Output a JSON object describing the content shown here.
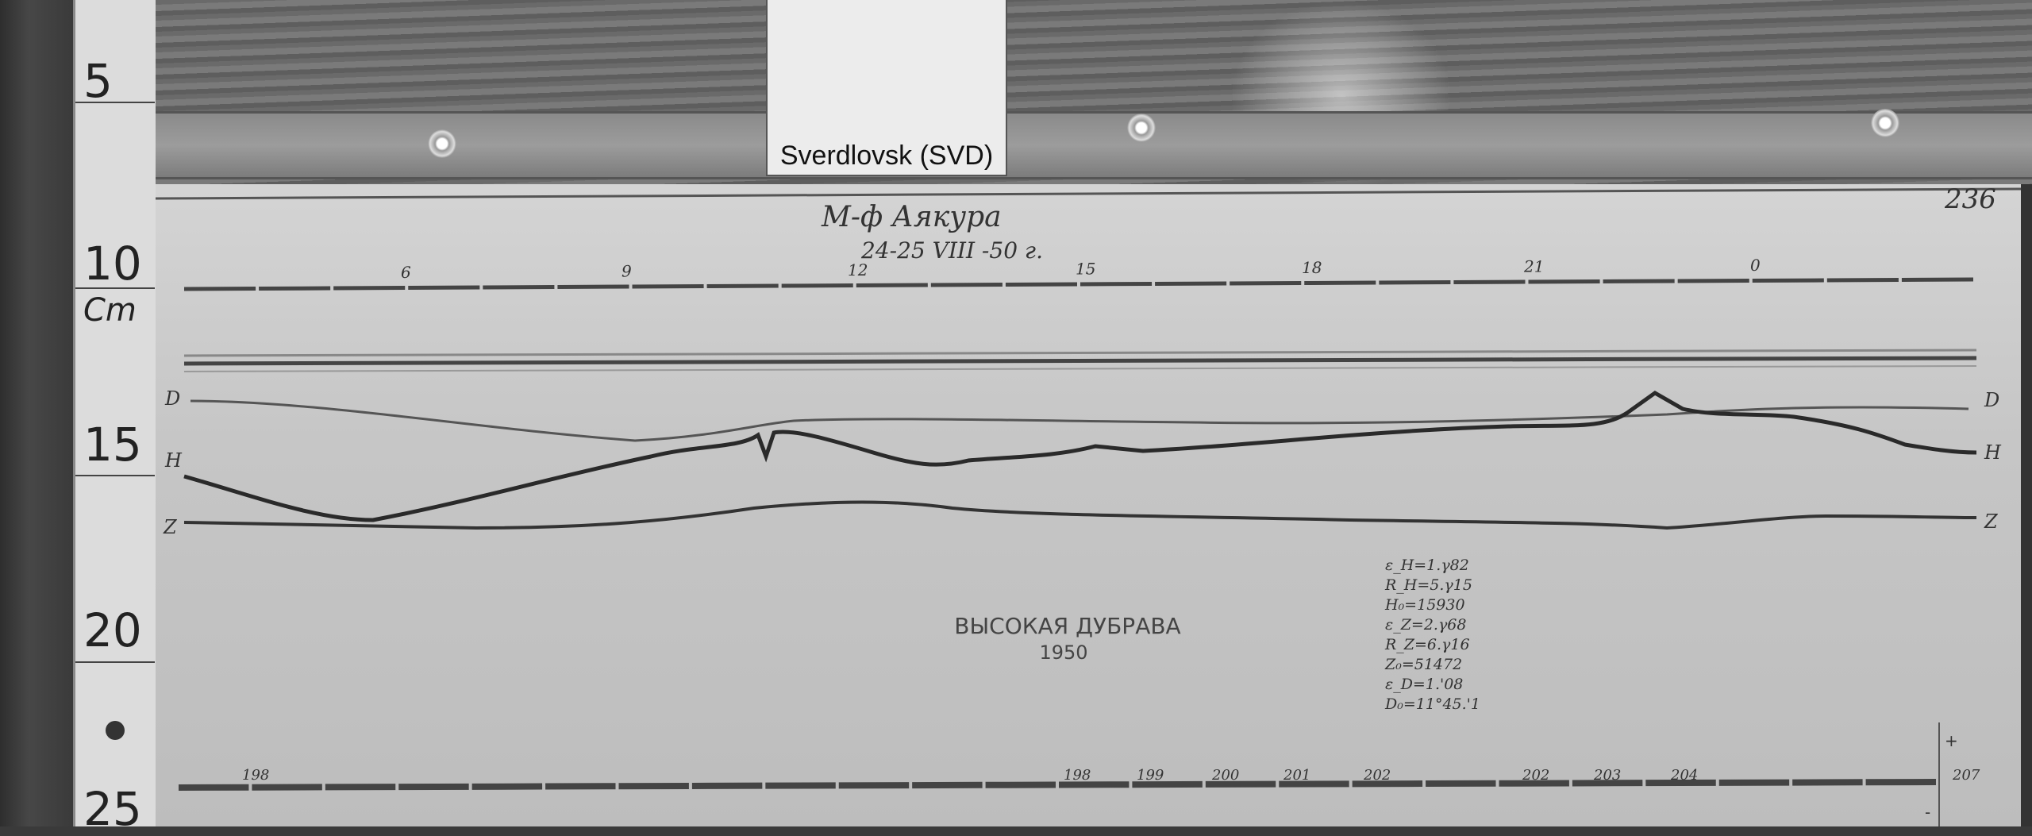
{
  "card_label": "Sverdlovsk (SVD)",
  "ruler": {
    "numbers": [
      "5",
      "10",
      "15",
      "20",
      "25"
    ],
    "unit": "Cm"
  },
  "sheet_number": "236",
  "header": {
    "observatory": "М-ф  Аякура",
    "date": "24-25 VIII -50 г."
  },
  "time_marks": [
    "6",
    "9",
    "12",
    "15",
    "18",
    "21",
    "0"
  ],
  "trace_labels": {
    "d": "D",
    "h": "H",
    "z": "Z"
  },
  "station": {
    "name": "ВЫСОКАЯ ДУБРАВА",
    "year": "1950"
  },
  "parameters": [
    "ε_H=1.γ82",
    "R_H=5.γ15",
    "H₀=15930",
    "ε_Z=2.γ68",
    "R_Z=6.γ16",
    "Z₀=51472",
    "ε_D=1.'08",
    "D₀=11°45.'1"
  ],
  "bottom_marks": [
    "198",
    "198",
    "199",
    "200",
    "201",
    "202",
    "202",
    "203",
    "204",
    "207"
  ],
  "scale_marks": {
    "plus": "+",
    "minus": "-"
  }
}
